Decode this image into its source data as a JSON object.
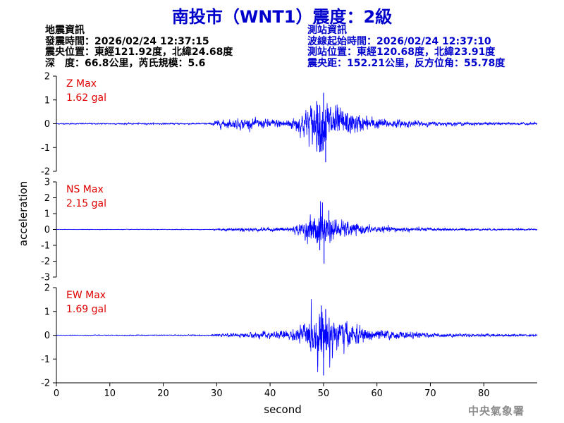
{
  "title": "南投市（WNT1）震度：2級",
  "earthquake_info": {
    "heading": "地震資訊",
    "origin_time": "發震時間：2026/02/24 12:37:15",
    "epicenter": "震央位置：東經121.92度，北緯24.68度",
    "depth_magnitude": "深　度：66.8公里，芮氏規模：5.6"
  },
  "station_info": {
    "heading": "測站資訊",
    "wave_start": "波線起始時間：2026/02/24 12:37:10",
    "location": "測站位置：東經120.68度，北緯23.91度",
    "distance": "震央距：152.21公里，反方位角：55.78度"
  },
  "watermark": "中央氣象署",
  "chart_data": {
    "type": "line",
    "xlabel": "second",
    "ylabel": "acceleration",
    "xlim": [
      0,
      90
    ],
    "xticks": [
      0,
      10,
      20,
      30,
      40,
      50,
      60,
      70,
      80
    ],
    "line_color": "#0000ff",
    "label_color": "#e00000",
    "panels": [
      {
        "component": "Z",
        "label": "Z Max",
        "max_text": "1.62 gal",
        "ylim": [
          -2,
          2
        ],
        "yticks": [
          -2,
          -1,
          0,
          1,
          2
        ],
        "envelope": {
          "t": [
            0,
            29,
            29.5,
            35,
            40,
            44,
            46,
            48,
            50,
            52,
            54,
            57,
            62,
            70,
            80,
            89
          ],
          "a": [
            0.02,
            0.03,
            0.12,
            0.2,
            0.16,
            0.2,
            0.45,
            0.8,
            1.05,
            0.7,
            0.5,
            0.3,
            0.16,
            0.08,
            0.05,
            0.04
          ]
        },
        "peaks": [
          {
            "t": 50.0,
            "v": 1.3
          },
          {
            "t": 50.4,
            "v": -1.62
          },
          {
            "t": 49.3,
            "v": -1.2
          },
          {
            "t": 48.7,
            "v": 0.95
          }
        ]
      },
      {
        "component": "NS",
        "label": "NS Max",
        "max_text": "2.15 gal",
        "ylim": [
          -3,
          3
        ],
        "yticks": [
          -3,
          -2,
          -1,
          0,
          1,
          2,
          3
        ],
        "envelope": {
          "t": [
            0,
            29,
            29.5,
            35,
            40,
            44,
            46,
            48,
            49.5,
            51,
            53,
            56,
            60,
            70,
            80,
            89
          ],
          "a": [
            0.01,
            0.02,
            0.05,
            0.1,
            0.1,
            0.15,
            0.35,
            0.8,
            1.2,
            0.75,
            0.5,
            0.32,
            0.18,
            0.09,
            0.05,
            0.04
          ]
        },
        "peaks": [
          {
            "t": 49.8,
            "v": 1.7
          },
          {
            "t": 50.1,
            "v": -2.15
          },
          {
            "t": 49.3,
            "v": -1.3
          },
          {
            "t": 51.0,
            "v": 1.2
          }
        ]
      },
      {
        "component": "EW",
        "label": "EW Max",
        "max_text": "1.69 gal",
        "ylim": [
          -2,
          2
        ],
        "yticks": [
          -2,
          -1,
          0,
          1,
          2
        ],
        "envelope": {
          "t": [
            0,
            29,
            29.5,
            35,
            40,
            44,
            46,
            48,
            50,
            52,
            54,
            57,
            62,
            70,
            80,
            89
          ],
          "a": [
            0.01,
            0.02,
            0.03,
            0.08,
            0.14,
            0.2,
            0.35,
            0.75,
            1.0,
            0.75,
            0.5,
            0.3,
            0.16,
            0.08,
            0.05,
            0.04
          ]
        },
        "peaks": [
          {
            "t": 49.6,
            "v": 1.25
          },
          {
            "t": 50.0,
            "v": -1.69
          },
          {
            "t": 50.4,
            "v": 1.1
          },
          {
            "t": 48.9,
            "v": -1.3
          }
        ]
      }
    ]
  }
}
